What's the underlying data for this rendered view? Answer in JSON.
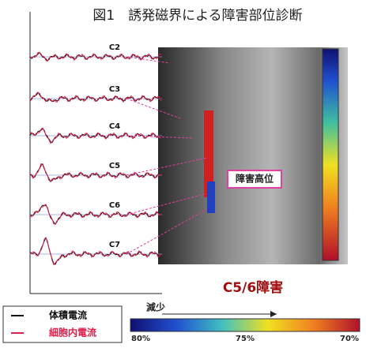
{
  "title": "図1　誘発磁界による障害部位診断",
  "traces": {
    "labels": [
      "C2",
      "C3",
      "C4",
      "C5",
      "C6",
      "C7"
    ]
  },
  "image": {
    "annotation": "障害高位",
    "caption": "C5/6障害"
  },
  "legend": {
    "items": [
      "体積電流",
      "細胞内電流"
    ]
  },
  "colorbar": {
    "direction": "減少",
    "labels": [
      "80%",
      "75%",
      "70%"
    ]
  }
}
